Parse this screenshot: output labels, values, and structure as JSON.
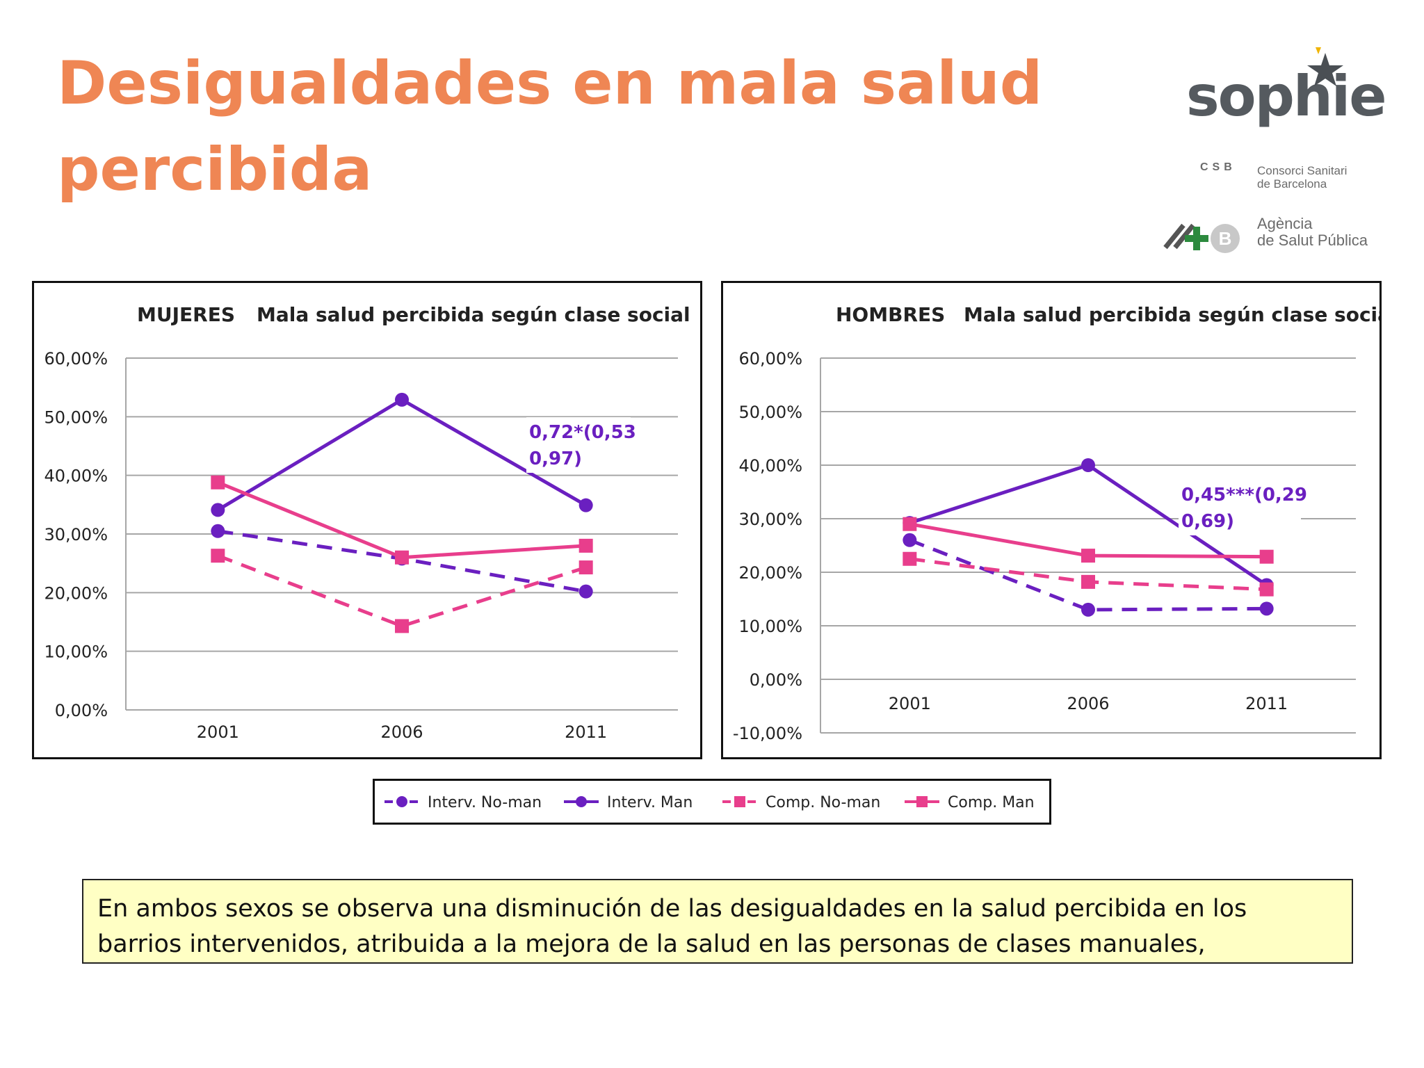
{
  "slide": {
    "title_line1": "Desigualdades en mala salud",
    "title_line2": "percibida",
    "note": "En ambos sexos se observa una disminución de las desigualdades en la salud percibida en los barrios intervenidos, atribuida a la mejora de la salud en las personas de clases manuales,"
  },
  "logos": {
    "sophie": "sophie",
    "csb_abbr": "CSB",
    "csb_line1": "Consorci Sanitari",
    "csb_line2": "de Barcelona",
    "asp_line1": "Agència",
    "asp_line2": "de Salut Pública"
  },
  "colors": {
    "title": "#ef8654",
    "interv": "#6a1fc0",
    "comp": "#e83e8c",
    "grid": "#a6a6a6",
    "note_bg": "#ffffc4"
  },
  "legend": [
    {
      "label": "Interv. No-man",
      "color": "#6a1fc0",
      "dashed": true,
      "marker": "circle"
    },
    {
      "label": "Interv. Man",
      "color": "#6a1fc0",
      "dashed": false,
      "marker": "circle"
    },
    {
      "label": "Comp. No-man",
      "color": "#e83e8c",
      "dashed": true,
      "marker": "square"
    },
    {
      "label": "Comp. Man",
      "color": "#e83e8c",
      "dashed": false,
      "marker": "square"
    }
  ],
  "chart_data": [
    {
      "type": "line",
      "title_left": "MUJERES",
      "title": "Mala salud percibida según clase social",
      "categories": [
        "2001",
        "2006",
        "2011"
      ],
      "ylim": [
        0,
        60
      ],
      "yticks": [
        "0,00%",
        "10,00%",
        "20,00%",
        "30,00%",
        "40,00%",
        "50,00%",
        "60,00%"
      ],
      "grid": true,
      "series": [
        {
          "name": "Interv. No-man",
          "values": [
            30.5,
            25.8,
            20.2
          ]
        },
        {
          "name": "Interv. Man",
          "values": [
            34.1,
            52.9,
            34.9
          ]
        },
        {
          "name": "Comp. No-man",
          "values": [
            26.3,
            14.3,
            24.3
          ]
        },
        {
          "name": "Comp. Man",
          "values": [
            38.8,
            26.0,
            28.0
          ]
        }
      ],
      "annotation": {
        "line1": "0,72*(0,53",
        "line2": "0,97)"
      }
    },
    {
      "type": "line",
      "title_left": "HOMBRES",
      "title": "Mala salud percibida según clase social",
      "categories": [
        "2001",
        "2006",
        "2011"
      ],
      "ylim": [
        -10,
        60
      ],
      "yticks": [
        "-10,00%",
        "0,00%",
        "10,00%",
        "20,00%",
        "30,00%",
        "40,00%",
        "50,00%",
        "60,00%"
      ],
      "grid": true,
      "series": [
        {
          "name": "Interv. No-man",
          "values": [
            26.0,
            13.0,
            13.2
          ]
        },
        {
          "name": "Interv. Man",
          "values": [
            29.2,
            40.0,
            17.6
          ]
        },
        {
          "name": "Comp. No-man",
          "values": [
            22.5,
            18.2,
            16.8
          ]
        },
        {
          "name": "Comp. Man",
          "values": [
            29.0,
            23.1,
            22.9
          ]
        }
      ],
      "annotation": {
        "line1": "0,45***(0,29",
        "line2": "0,69)"
      }
    }
  ]
}
